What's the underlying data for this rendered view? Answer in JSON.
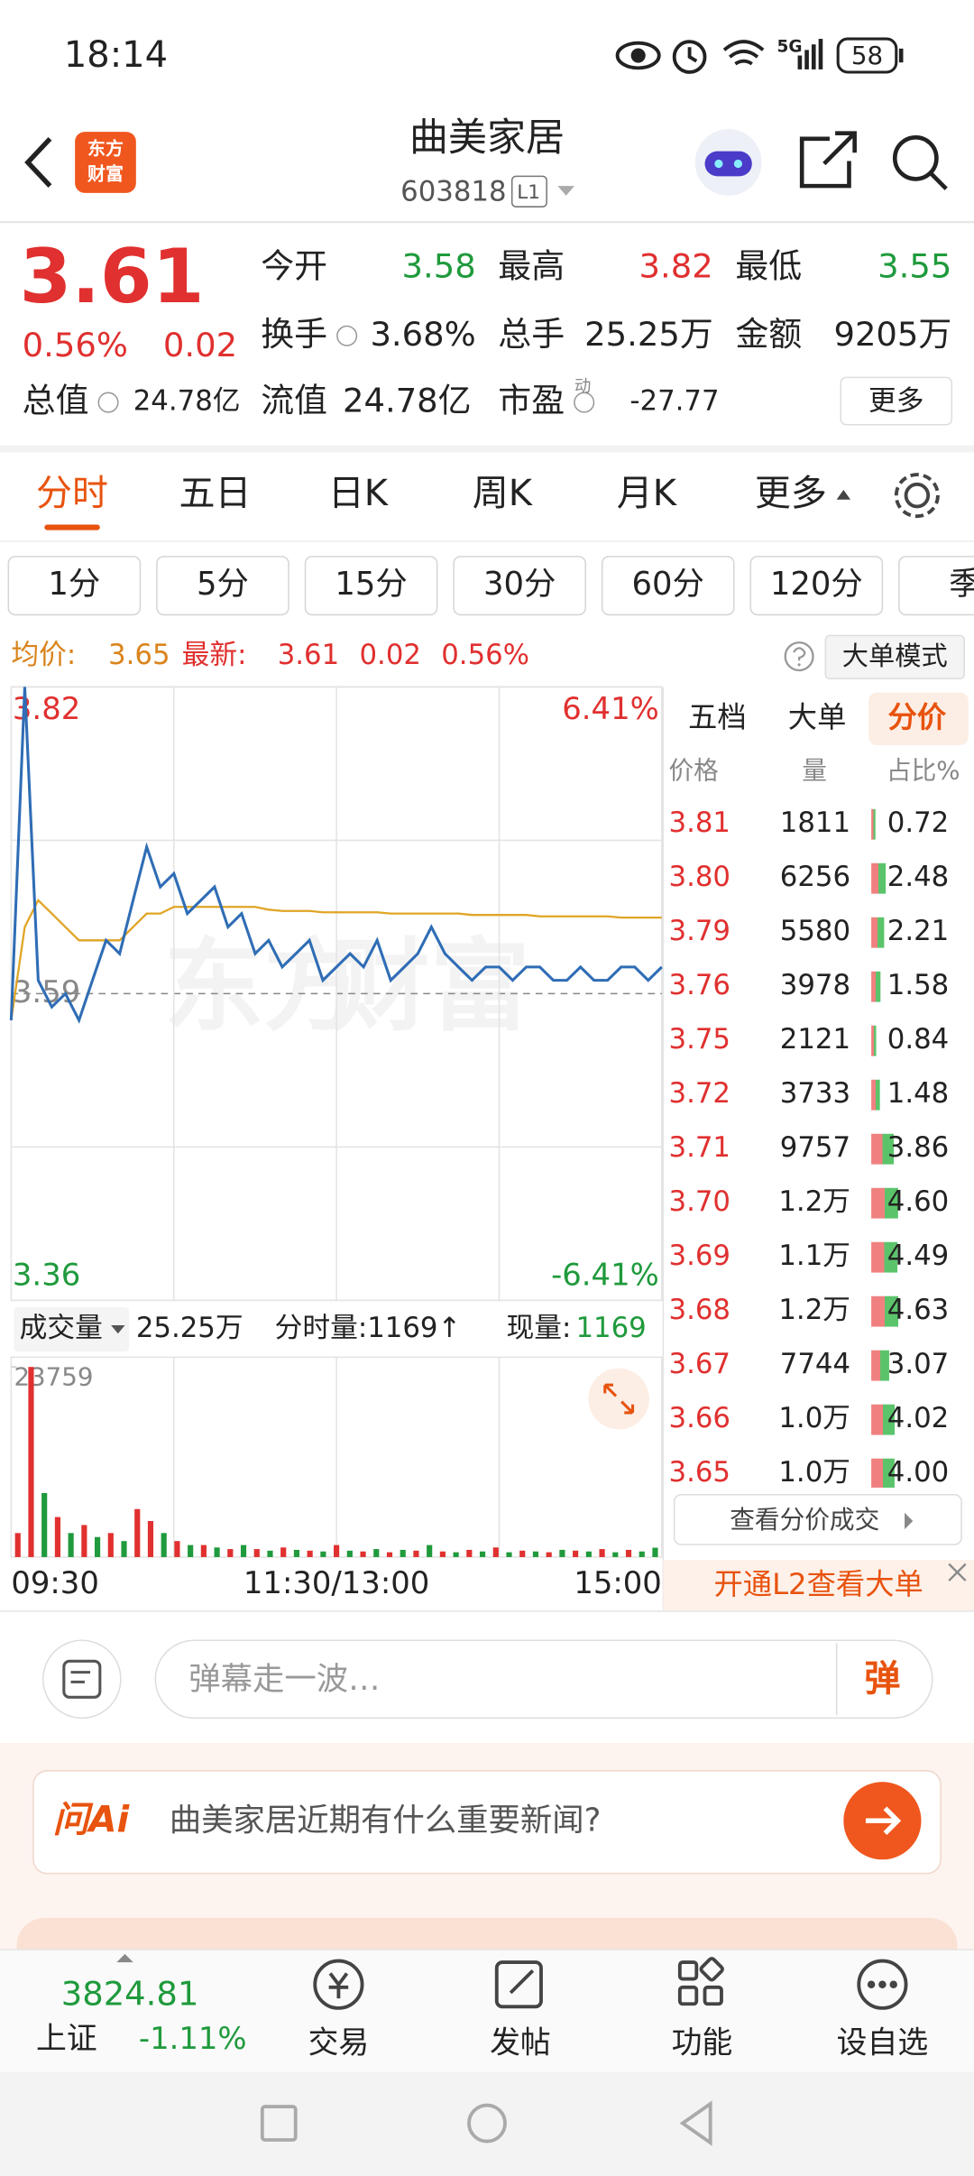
{
  "status_bar": {
    "time": "18:14",
    "network": "5G",
    "battery": "58"
  },
  "header": {
    "logo": [
      "东方",
      "财富"
    ],
    "name": "曲美家居",
    "code": "603818",
    "level": "L1"
  },
  "quote": {
    "price": "3.61",
    "change_pct": "0.56%",
    "change": "0.02",
    "stats": [
      {
        "label": "今开",
        "value": "3.58"
      },
      {
        "label": "最高",
        "value": "3.82"
      },
      {
        "label": "最低",
        "value": "3.55"
      },
      {
        "label": "换手",
        "value": "3.68%"
      },
      {
        "label": "总手",
        "value": "25.25万"
      },
      {
        "label": "金额",
        "value": "9205万"
      },
      {
        "label": "总值",
        "value": "24.78亿"
      },
      {
        "label": "流值",
        "value": "24.78亿"
      },
      {
        "label": "市盈",
        "value": "-27.77"
      }
    ],
    "pe_tag": "动",
    "more": "更多"
  },
  "tabs": [
    "分时",
    "五日",
    "日K",
    "周K",
    "月K",
    "更多"
  ],
  "intervals": [
    "1分",
    "5分",
    "15分",
    "30分",
    "60分",
    "120分",
    "季"
  ],
  "summary": {
    "avg_label": "均价:",
    "avg": "3.65",
    "latest_label": "最新:",
    "latest": "3.61",
    "change": "0.02",
    "pct": "0.56%",
    "mode": "大单模式"
  },
  "chart_data": [
    {
      "type": "line",
      "categories": [
        "09:30",
        null,
        null,
        null,
        null,
        null,
        null,
        null,
        null,
        null,
        null,
        null,
        null,
        null,
        null,
        null,
        null,
        null,
        null,
        null,
        null,
        null,
        null,
        null,
        "11:30/13:00",
        null,
        null,
        null,
        null,
        null,
        null,
        null,
        null,
        null,
        null,
        null,
        null,
        null,
        null,
        null,
        null,
        null,
        null,
        null,
        null,
        null,
        null,
        null,
        "15:00"
      ],
      "series": [
        {
          "color": "#2f6db5",
          "values": [
            3.57,
            3.82,
            3.6,
            3.58,
            3.59,
            3.57,
            3.6,
            3.63,
            3.62,
            3.66,
            3.7,
            3.67,
            3.68,
            3.65,
            3.66,
            3.67,
            3.64,
            3.65,
            3.62,
            3.63,
            3.61,
            3.62,
            3.63,
            3.6,
            3.61,
            3.62,
            3.61,
            3.63,
            3.6,
            3.61,
            3.62,
            3.64,
            3.62,
            3.61,
            3.6,
            3.61,
            3.61,
            3.6,
            3.61,
            3.61,
            3.6,
            3.6,
            3.61,
            3.6,
            3.6,
            3.61,
            3.61,
            3.6,
            3.61
          ]
        },
        {
          "color": "#e0a526",
          "values": [
            3.57,
            3.64,
            3.66,
            3.65,
            3.64,
            3.63,
            3.63,
            3.63,
            3.63,
            3.64,
            3.65,
            3.65,
            3.655,
            3.655,
            3.655,
            3.655,
            3.655,
            3.655,
            3.655,
            3.653,
            3.652,
            3.652,
            3.652,
            3.651,
            3.651,
            3.651,
            3.651,
            3.651,
            3.65,
            3.65,
            3.65,
            3.65,
            3.65,
            3.65,
            3.649,
            3.649,
            3.649,
            3.649,
            3.649,
            3.648,
            3.648,
            3.648,
            3.648,
            3.648,
            3.648,
            3.647,
            3.647,
            3.647,
            3.647
          ]
        }
      ],
      "ylim": [
        3.36,
        3.82
      ],
      "yticks": [
        3.36,
        3.59,
        3.82
      ],
      "y2lim": [
        -6.41,
        6.41
      ],
      "y2ticks": [
        {
          "value": -6.41,
          "label": "-6.41%"
        },
        {
          "value": 6.41,
          "label": "6.41%"
        }
      ]
    },
    {
      "type": "bar",
      "values": [
        3000,
        23759,
        8000,
        5000,
        3000,
        4000,
        2500,
        3000,
        2000,
        6000,
        4500,
        3000,
        2000,
        1500,
        1500,
        1200,
        1000,
        1500,
        1000,
        800,
        1200,
        900,
        800,
        700,
        1500,
        800,
        700,
        1000,
        600,
        900,
        800,
        1500,
        700,
        600,
        900,
        700,
        1200,
        600,
        800,
        700,
        600,
        900,
        800,
        700,
        1000,
        600,
        900,
        700,
        1169
      ],
      "colors": [
        "#e0302f",
        "#e0302f",
        "#1f9a3c",
        "#e0302f",
        "#1f9a3c",
        "#e0302f",
        "#1f9a3c",
        "#e0302f",
        "#1f9a3c",
        "#e0302f",
        "#e0302f",
        "#1f9a3c",
        "#e0302f",
        "#1f9a3c",
        "#e0302f",
        "#1f9a3c",
        "#e0302f",
        "#1f9a3c",
        "#e0302f",
        "#1f9a3c",
        "#e0302f",
        "#1f9a3c",
        "#e0302f",
        "#1f9a3c",
        "#e0302f",
        "#1f9a3c",
        "#e0302f",
        "#1f9a3c",
        "#e0302f",
        "#1f9a3c",
        "#e0302f",
        "#1f9a3c",
        "#e0302f",
        "#1f9a3c",
        "#e0302f",
        "#1f9a3c",
        "#e0302f",
        "#1f9a3c",
        "#e0302f",
        "#1f9a3c",
        "#e0302f",
        "#1f9a3c",
        "#e0302f",
        "#1f9a3c",
        "#e0302f",
        "#1f9a3c",
        "#e0302f",
        "#1f9a3c",
        "#1f9a3c"
      ],
      "ylim": [
        0,
        23759
      ],
      "yticks": [
        23759
      ]
    }
  ],
  "volume_info": {
    "label": "成交量",
    "total": "25.25万",
    "tick": "分时量:1169↑",
    "now_label": "现量:",
    "now": "1169"
  },
  "price_table": {
    "tabs": [
      "五档",
      "大单",
      "分价"
    ],
    "columns": [
      "价格",
      "量",
      "占比%"
    ],
    "rows": [
      [
        "3.81",
        "1811",
        "0.72"
      ],
      [
        "3.80",
        "6256",
        "2.48"
      ],
      [
        "3.79",
        "5580",
        "2.21"
      ],
      [
        "3.76",
        "3978",
        "1.58"
      ],
      [
        "3.75",
        "2121",
        "0.84"
      ],
      [
        "3.72",
        "3733",
        "1.48"
      ],
      [
        "3.71",
        "9757",
        "3.86"
      ],
      [
        "3.70",
        "1.2万",
        "4.60"
      ],
      [
        "3.69",
        "1.1万",
        "4.49"
      ],
      [
        "3.68",
        "1.2万",
        "4.63"
      ],
      [
        "3.67",
        "7744",
        "3.07"
      ],
      [
        "3.66",
        "1.0万",
        "4.02"
      ],
      [
        "3.65",
        "1.0万",
        "4.00"
      ]
    ],
    "link": "查看分价成交"
  },
  "l2_banner": "开通L2查看大单",
  "comment": {
    "placeholder": "弹幕走一波…",
    "send": "弹"
  },
  "ai": {
    "brand": "问Ai",
    "question": "曲美家居近期有什么重要新闻?"
  },
  "bottom_nav": {
    "index_value": "3824.81",
    "index_name": "上证",
    "index_change": "-1.11%",
    "items": [
      "交易",
      "发帖",
      "功能",
      "设自选"
    ]
  }
}
